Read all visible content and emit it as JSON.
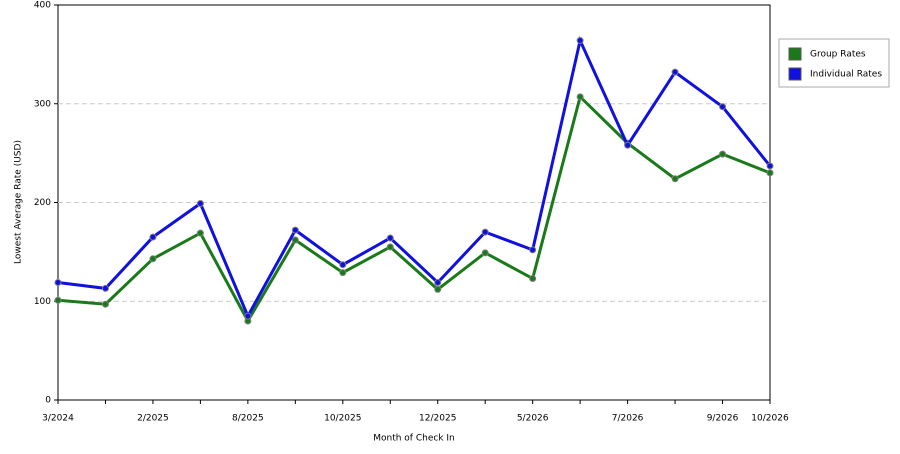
{
  "chart_data": {
    "type": "line",
    "x_label": "Month of Check In",
    "y_label": "Lowest Average Rate (USD)",
    "categories": [
      "3/2024",
      null,
      "2/2025",
      null,
      "8/2025",
      null,
      "10/2025",
      null,
      "12/2025",
      null,
      "5/2026",
      null,
      "7/2026",
      null,
      "9/2026",
      "10/2026"
    ],
    "series": [
      {
        "name": "Group Rates",
        "color": "#1a7a1a",
        "values": [
          101,
          97,
          143,
          169,
          80,
          162,
          129,
          155,
          112,
          149,
          123,
          307,
          260,
          224,
          249,
          230
        ]
      },
      {
        "name": "Individual Rates",
        "color": "#1010e0",
        "values": [
          119,
          113,
          165,
          199,
          85,
          172,
          137,
          164,
          119,
          170,
          152,
          364,
          258,
          332,
          297,
          237
        ]
      }
    ],
    "ylim": [
      0,
      400
    ],
    "yticks": [
      0,
      100,
      200,
      300,
      400
    ],
    "grid": true,
    "legend": "right"
  }
}
